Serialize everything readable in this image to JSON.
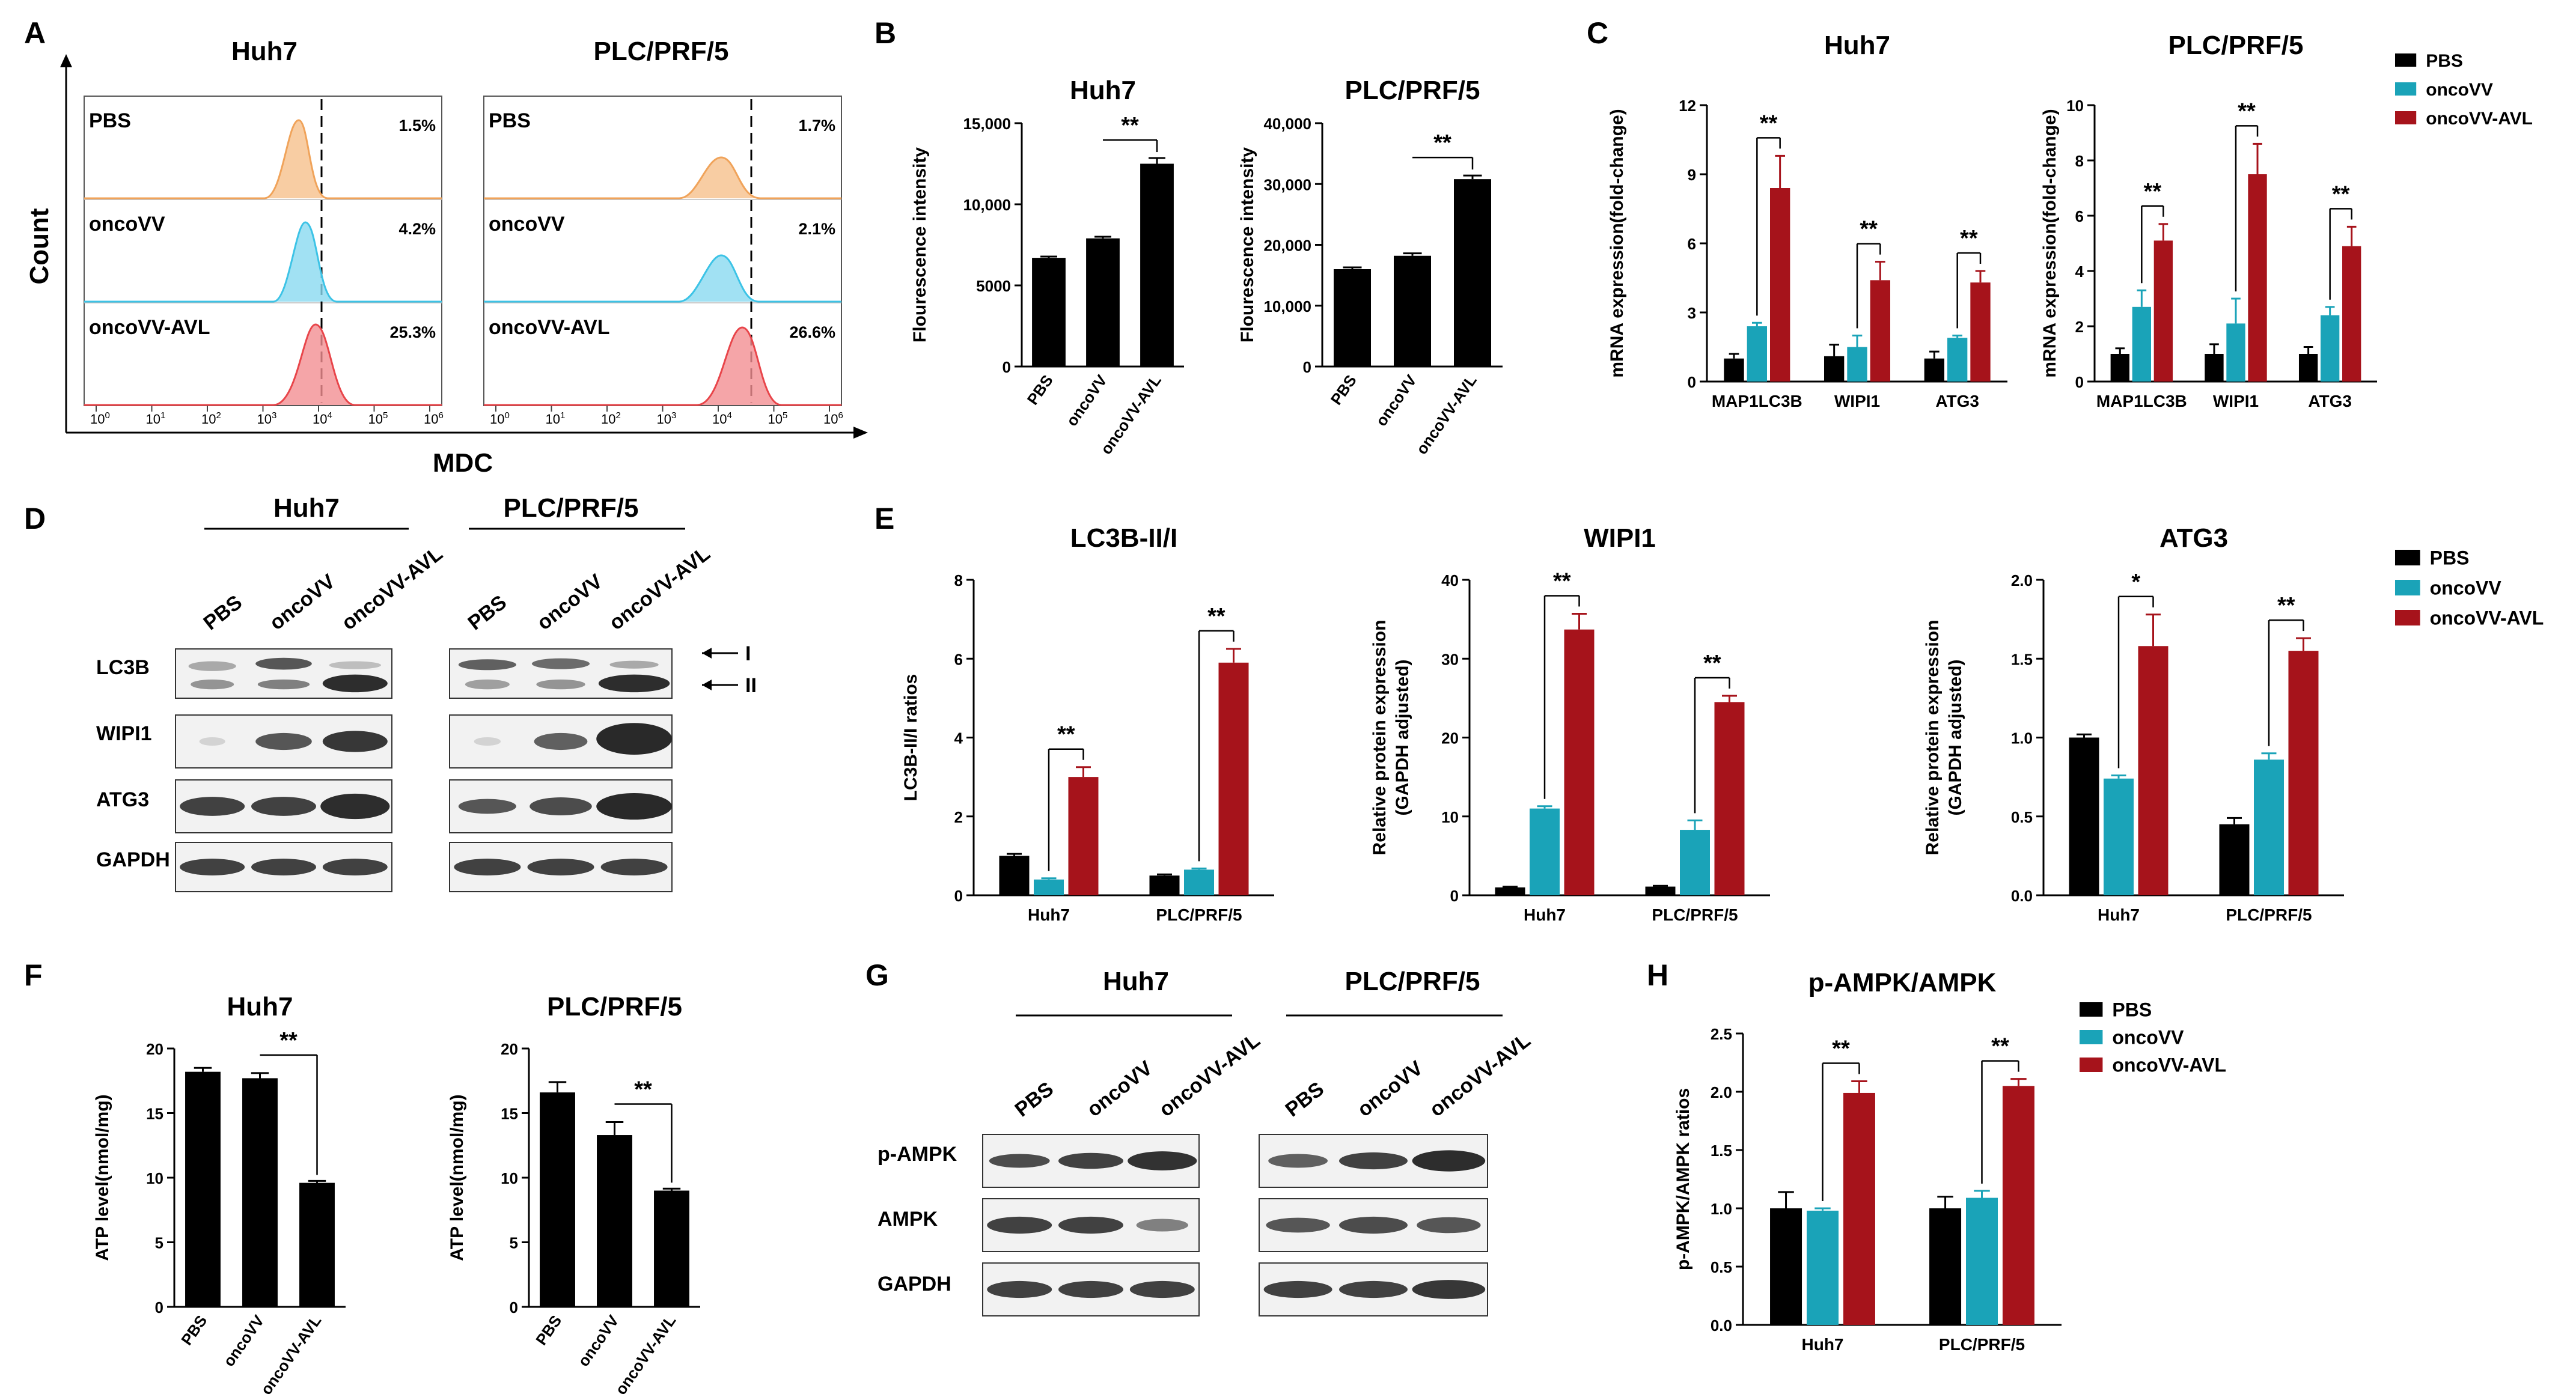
{
  "colors": {
    "PBS": "#000000",
    "oncoVV": "#1aa3b8",
    "oncoVV-AVL": "#a6131b"
  },
  "panel_labels": {
    "A": "A",
    "B": "B",
    "C": "C",
    "D": "D",
    "E": "E",
    "F": "F",
    "G": "G",
    "H": "H"
  },
  "panelA": {
    "titles": [
      "Huh7",
      "PLC/PRF/5"
    ],
    "ylabel": "Count",
    "xlabel": "MDC",
    "row_labels": [
      "PBS",
      "oncoVV",
      "oncoVV-AVL"
    ],
    "percents": [
      [
        "1.5%",
        "4.2%",
        "25.3%"
      ],
      [
        "1.7%",
        "2.1%",
        "26.6%"
      ]
    ],
    "row_colors": [
      "#f0a35a",
      "#3cc3e6",
      "#e8454a"
    ]
  },
  "panelD": {
    "titles": [
      "Huh7",
      "PLC/PRF/5"
    ],
    "lanes": [
      "PBS",
      "oncoVV",
      "oncoVV-AVL"
    ],
    "bands": [
      "LC3B",
      "WIPI1",
      "ATG3",
      "GAPDH"
    ],
    "arrows": [
      "I",
      "II"
    ]
  },
  "panelG": {
    "titles": [
      "Huh7",
      "PLC/PRF/5"
    ],
    "lanes": [
      "PBS",
      "oncoVV",
      "oncoVV-AVL"
    ],
    "bands": [
      "p-AMPK",
      "AMPK",
      "GAPDH"
    ]
  },
  "legend": [
    "PBS",
    "oncoVV",
    "oncoVV-AVL"
  ],
  "chart_data": [
    {
      "id": "B1",
      "type": "bar",
      "title": "Huh7",
      "ylabel": "Flourescence intensity",
      "categories": [
        "PBS",
        "oncoVV",
        "oncoVV-AVL"
      ],
      "values": [
        6700,
        7900,
        12500
      ],
      "errors": [
        80,
        100,
        350
      ],
      "ylim": [
        0,
        15000
      ],
      "yticks": [
        "0",
        "5000",
        "10,000",
        "15,000"
      ],
      "sig": [
        {
          "from": 1,
          "to": 2,
          "label": "**"
        }
      ]
    },
    {
      "id": "B2",
      "type": "bar",
      "title": "PLC/PRF/5",
      "ylabel": "Flourescence intensity",
      "categories": [
        "PBS",
        "oncoVV",
        "oncoVV-AVL"
      ],
      "values": [
        16000,
        18200,
        30800
      ],
      "errors": [
        300,
        400,
        600
      ],
      "ylim": [
        0,
        40000
      ],
      "yticks": [
        "0",
        "10,000",
        "20,000",
        "30,000",
        "40,000"
      ],
      "sig": [
        {
          "from": 1,
          "to": 2,
          "label": "**"
        }
      ]
    },
    {
      "id": "C1",
      "type": "bar",
      "title": "Huh7",
      "ylabel": "mRNA expression(fold-change)",
      "categories": [
        "MAP1LC3B",
        "WIPI1",
        "ATG3"
      ],
      "series": [
        {
          "name": "PBS",
          "values": [
            1.0,
            1.1,
            1.0
          ],
          "errors": [
            0.2,
            0.5,
            0.3
          ]
        },
        {
          "name": "oncoVV",
          "values": [
            2.4,
            1.5,
            1.9
          ],
          "errors": [
            0.15,
            0.5,
            0.1
          ]
        },
        {
          "name": "oncoVV-AVL",
          "values": [
            8.4,
            4.4,
            4.3
          ],
          "errors": [
            1.4,
            0.8,
            0.5
          ]
        }
      ],
      "ylim": [
        0,
        12
      ],
      "yticks": [
        "0",
        "3",
        "6",
        "9",
        "12"
      ],
      "sig": [
        {
          "cat": 0,
          "from": 1,
          "to": 2,
          "label": "**"
        },
        {
          "cat": 1,
          "from": 1,
          "to": 2,
          "label": "**"
        },
        {
          "cat": 2,
          "from": 1,
          "to": 2,
          "label": "**"
        }
      ]
    },
    {
      "id": "C2",
      "type": "bar",
      "title": "PLC/PRF/5",
      "ylabel": "mRNA expression(fold-change)",
      "categories": [
        "MAP1LC3B",
        "WIPI1",
        "ATG3"
      ],
      "series": [
        {
          "name": "PBS",
          "values": [
            1.0,
            1.0,
            1.0
          ],
          "errors": [
            0.2,
            0.35,
            0.25
          ]
        },
        {
          "name": "oncoVV",
          "values": [
            2.7,
            2.1,
            2.4
          ],
          "errors": [
            0.6,
            0.9,
            0.3
          ]
        },
        {
          "name": "oncoVV-AVL",
          "values": [
            5.1,
            7.5,
            4.9
          ],
          "errors": [
            0.6,
            1.1,
            0.7
          ]
        }
      ],
      "ylim": [
        0,
        10
      ],
      "yticks": [
        "0",
        "2",
        "4",
        "6",
        "8",
        "10"
      ],
      "sig": [
        {
          "cat": 0,
          "from": 1,
          "to": 2,
          "label": "**"
        },
        {
          "cat": 1,
          "from": 1,
          "to": 2,
          "label": "**"
        },
        {
          "cat": 2,
          "from": 1,
          "to": 2,
          "label": "**"
        }
      ]
    },
    {
      "id": "E1",
      "type": "bar",
      "title": "LC3B-II/I",
      "ylabel": "LC3B-II/I ratios",
      "categories": [
        "Huh7",
        "PLC/PRF/5"
      ],
      "series": [
        {
          "name": "PBS",
          "values": [
            1.0,
            0.5
          ],
          "errors": [
            0.05,
            0.03
          ]
        },
        {
          "name": "oncoVV",
          "values": [
            0.4,
            0.65
          ],
          "errors": [
            0.03,
            0.03
          ]
        },
        {
          "name": "oncoVV-AVL",
          "values": [
            3.0,
            5.9
          ],
          "errors": [
            0.25,
            0.35
          ]
        }
      ],
      "ylim": [
        0,
        8
      ],
      "yticks": [
        "0",
        "2",
        "4",
        "6",
        "8"
      ],
      "sig": [
        {
          "cat": 0,
          "from": 1,
          "to": 2,
          "label": "**"
        },
        {
          "cat": 1,
          "from": 1,
          "to": 2,
          "label": "**"
        }
      ]
    },
    {
      "id": "E2",
      "type": "bar",
      "title": "WIPI1",
      "ylabel": "Relative protein expression (GAPDH adjusted)",
      "categories": [
        "Huh7",
        "PLC/PRF/5"
      ],
      "series": [
        {
          "name": "PBS",
          "values": [
            1.0,
            1.1
          ],
          "errors": [
            0.1,
            0.1
          ]
        },
        {
          "name": "oncoVV",
          "values": [
            11.0,
            8.3
          ],
          "errors": [
            0.3,
            1.2
          ]
        },
        {
          "name": "oncoVV-AVL",
          "values": [
            33.7,
            24.5
          ],
          "errors": [
            2.0,
            0.8
          ]
        }
      ],
      "ylim": [
        0,
        40
      ],
      "yticks": [
        "0",
        "10",
        "20",
        "30",
        "40"
      ],
      "sig": [
        {
          "cat": 0,
          "from": 1,
          "to": 2,
          "label": "**"
        },
        {
          "cat": 1,
          "from": 1,
          "to": 2,
          "label": "**"
        }
      ]
    },
    {
      "id": "E3",
      "type": "bar",
      "title": "ATG3",
      "ylabel": "Relative protein expression (GAPDH adjusted)",
      "categories": [
        "Huh7",
        "PLC/PRF/5"
      ],
      "series": [
        {
          "name": "PBS",
          "values": [
            1.0,
            0.45
          ],
          "errors": [
            0.02,
            0.04
          ]
        },
        {
          "name": "oncoVV",
          "values": [
            0.74,
            0.86
          ],
          "errors": [
            0.02,
            0.04
          ]
        },
        {
          "name": "oncoVV-AVL",
          "values": [
            1.58,
            1.55
          ],
          "errors": [
            0.2,
            0.08
          ]
        }
      ],
      "ylim": [
        0,
        2.0
      ],
      "yticks": [
        "0.0",
        "0.5",
        "1.0",
        "1.5",
        "2.0"
      ],
      "sig": [
        {
          "cat": 0,
          "from": 1,
          "to": 2,
          "label": "*"
        },
        {
          "cat": 1,
          "from": 1,
          "to": 2,
          "label": "**"
        }
      ]
    },
    {
      "id": "F1",
      "type": "bar",
      "title": "Huh7",
      "ylabel": "ATP level(nmol/mg)",
      "categories": [
        "PBS",
        "oncoVV",
        "oncoVV-AVL"
      ],
      "values": [
        18.2,
        17.7,
        9.6
      ],
      "errors": [
        0.3,
        0.4,
        0.15
      ],
      "ylim": [
        0,
        20
      ],
      "yticks": [
        "0",
        "5",
        "10",
        "15",
        "20"
      ],
      "sig": [
        {
          "from": 1,
          "to": 2,
          "label": "**"
        }
      ]
    },
    {
      "id": "F2",
      "type": "bar",
      "title": "PLC/PRF/5",
      "ylabel": "ATP level(nmol/mg)",
      "categories": [
        "PBS",
        "oncoVV",
        "oncoVV-AVL"
      ],
      "values": [
        16.6,
        13.3,
        9.0
      ],
      "errors": [
        0.8,
        1.0,
        0.15
      ],
      "ylim": [
        0,
        20
      ],
      "yticks": [
        "0",
        "5",
        "10",
        "15",
        "20"
      ],
      "sig": [
        {
          "from": 1,
          "to": 2,
          "label": "**"
        }
      ]
    },
    {
      "id": "H1",
      "type": "bar",
      "title": "p-AMPK/AMPK",
      "ylabel": "p-AMPK/AMPK ratios",
      "categories": [
        "Huh7",
        "PLC/PRF/5"
      ],
      "series": [
        {
          "name": "PBS",
          "values": [
            1.0,
            1.0
          ],
          "errors": [
            0.14,
            0.1
          ]
        },
        {
          "name": "oncoVV",
          "values": [
            0.98,
            1.09
          ],
          "errors": [
            0.02,
            0.06
          ]
        },
        {
          "name": "oncoVV-AVL",
          "values": [
            1.99,
            2.05
          ],
          "errors": [
            0.1,
            0.06
          ]
        }
      ],
      "ylim": [
        0,
        2.5
      ],
      "yticks": [
        "0.0",
        "0.5",
        "1.0",
        "1.5",
        "2.0",
        "2.5"
      ],
      "sig": [
        {
          "cat": 0,
          "from": 1,
          "to": 2,
          "label": "**"
        },
        {
          "cat": 1,
          "from": 1,
          "to": 2,
          "label": "**"
        }
      ]
    }
  ]
}
